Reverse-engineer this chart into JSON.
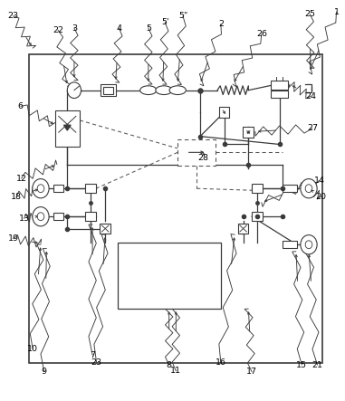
{
  "fig_width": 3.81,
  "fig_height": 4.43,
  "dpi": 100,
  "bg_color": "#ffffff",
  "line_color": "#3a3a3a",
  "dash_color": "#555555",
  "label_texts": {
    "1": "1",
    "2": "2",
    "3": "3",
    "4": "4",
    "5": "5",
    "5p": "5'",
    "5pp": "5\"",
    "6": "6",
    "7": "7",
    "8": "8",
    "9": "9",
    "10": "10",
    "11": "11",
    "12": "12",
    "13": "13",
    "14": "14",
    "15": "15",
    "16": "16",
    "17": "17",
    "18": "18",
    "19": "19",
    "20": "20",
    "21": "21",
    "22": "22",
    "23a": "23",
    "23b": "23",
    "24": "24",
    "25": "25",
    "26": "26",
    "27": "27",
    "28": "28"
  }
}
